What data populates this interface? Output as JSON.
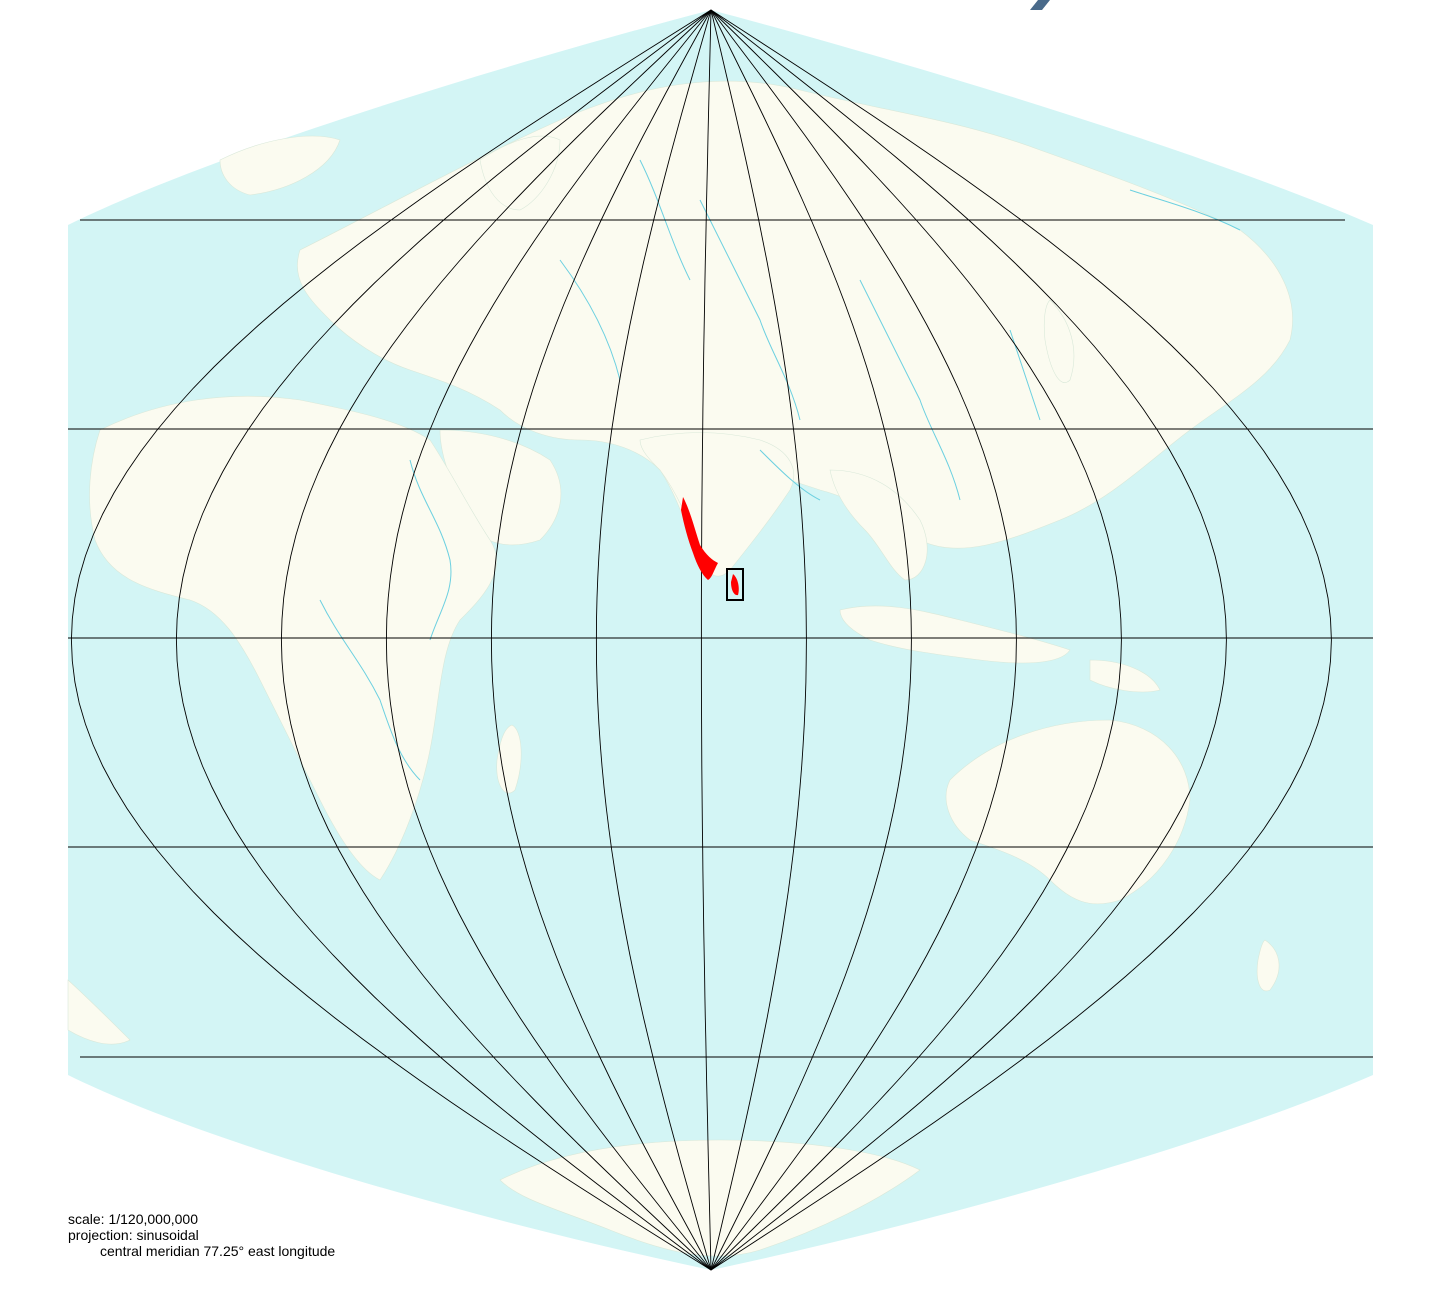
{
  "map": {
    "projection": "sinusoidal",
    "central_meridian_deg_east": 77.25,
    "colors": {
      "ocean": "#d3f5f5",
      "land": "#fbfbf0",
      "rivers": "#6cd0e0",
      "graticule": "#000000",
      "highlight": "#ff0000",
      "frame": "#000000",
      "title_fragment": "#4a6a8a"
    },
    "highlighted_region": "south-western India (Western Ghats / Kerala strip) and Sri Lanka inset box"
  },
  "legend": {
    "scale": "scale: 1/120,000,000",
    "projection": "projection: sinusoidal",
    "meridian": "central meridian 77.25° east longitude"
  }
}
